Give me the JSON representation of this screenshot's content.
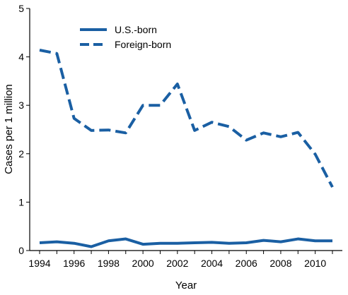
{
  "chart_data": {
    "type": "line",
    "xlabel": "Year",
    "ylabel": "Cases per 1 million",
    "xlim": [
      1994,
      2011
    ],
    "ylim": [
      0,
      5
    ],
    "x_ticks": [
      "1994",
      "1996",
      "1998",
      "2000",
      "2002",
      "2004",
      "2006",
      "2008",
      "2010"
    ],
    "y_ticks": [
      "0",
      "1",
      "2",
      "3",
      "4",
      "5"
    ],
    "legend_position": "top-center",
    "grid": false,
    "line_color": "#1a5fa3",
    "x": [
      1994,
      1995,
      1996,
      1997,
      1998,
      1999,
      2000,
      2001,
      2002,
      2003,
      2004,
      2005,
      2006,
      2007,
      2008,
      2009,
      2010,
      2011
    ],
    "series": [
      {
        "name": "U.S.-born",
        "style": "solid",
        "values": [
          0.16,
          0.18,
          0.15,
          0.08,
          0.2,
          0.24,
          0.13,
          0.15,
          0.15,
          0.16,
          0.17,
          0.15,
          0.16,
          0.21,
          0.18,
          0.24,
          0.2,
          0.2
        ]
      },
      {
        "name": "Foreign-born",
        "style": "dashed",
        "values": [
          4.14,
          4.07,
          2.73,
          2.48,
          2.49,
          2.43,
          3.0,
          3.0,
          3.44,
          2.48,
          2.65,
          2.56,
          2.28,
          2.43,
          2.35,
          2.44,
          1.99,
          1.31
        ]
      }
    ]
  }
}
